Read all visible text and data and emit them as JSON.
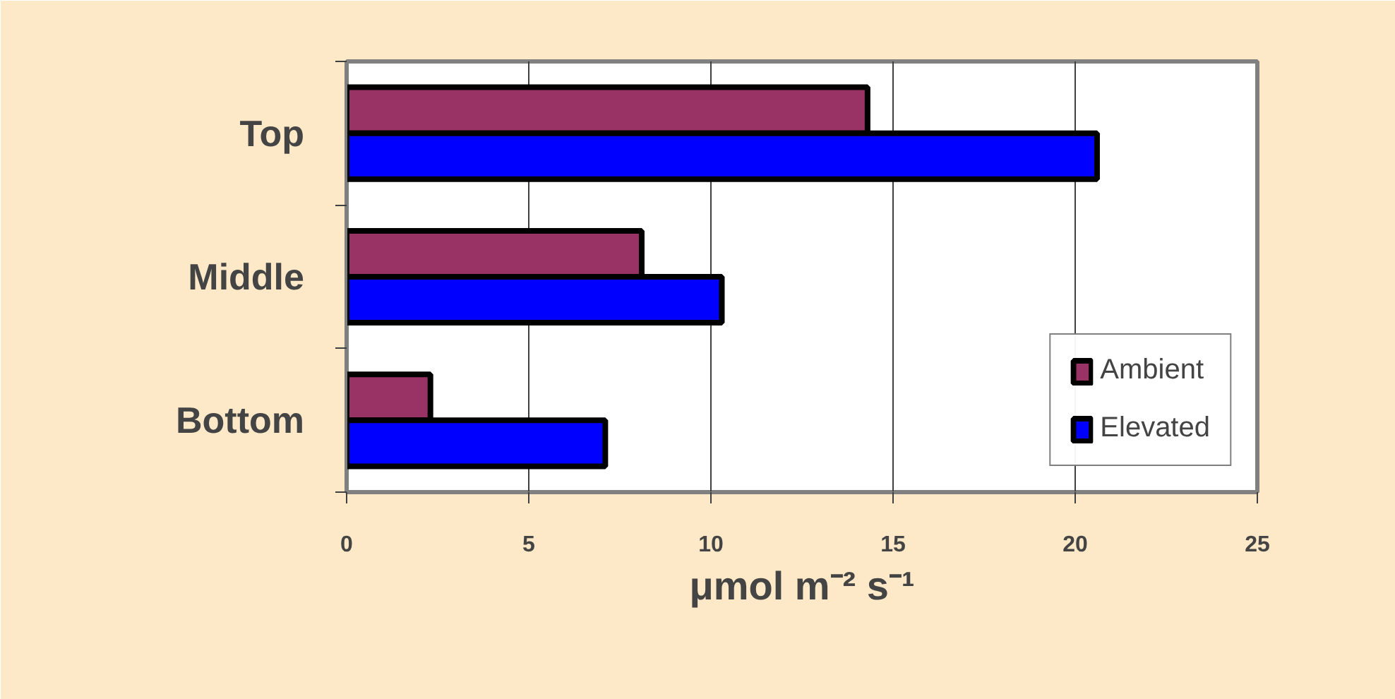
{
  "chart_data": {
    "type": "bar",
    "orientation": "horizontal",
    "categories": [
      "Top",
      "Middle",
      "Bottom"
    ],
    "series": [
      {
        "name": "Ambient",
        "color": "#993366",
        "values": [
          14.3,
          8.1,
          2.3
        ]
      },
      {
        "name": "Elevated",
        "color": "#0000ff",
        "values": [
          20.6,
          10.3,
          7.1
        ]
      }
    ],
    "xlim": [
      0,
      25
    ],
    "xticks": [
      0,
      5,
      10,
      15,
      20,
      25
    ],
    "xlabel": "μmol m⁻² s⁻¹",
    "grid": "x",
    "legend": "bottom right"
  }
}
